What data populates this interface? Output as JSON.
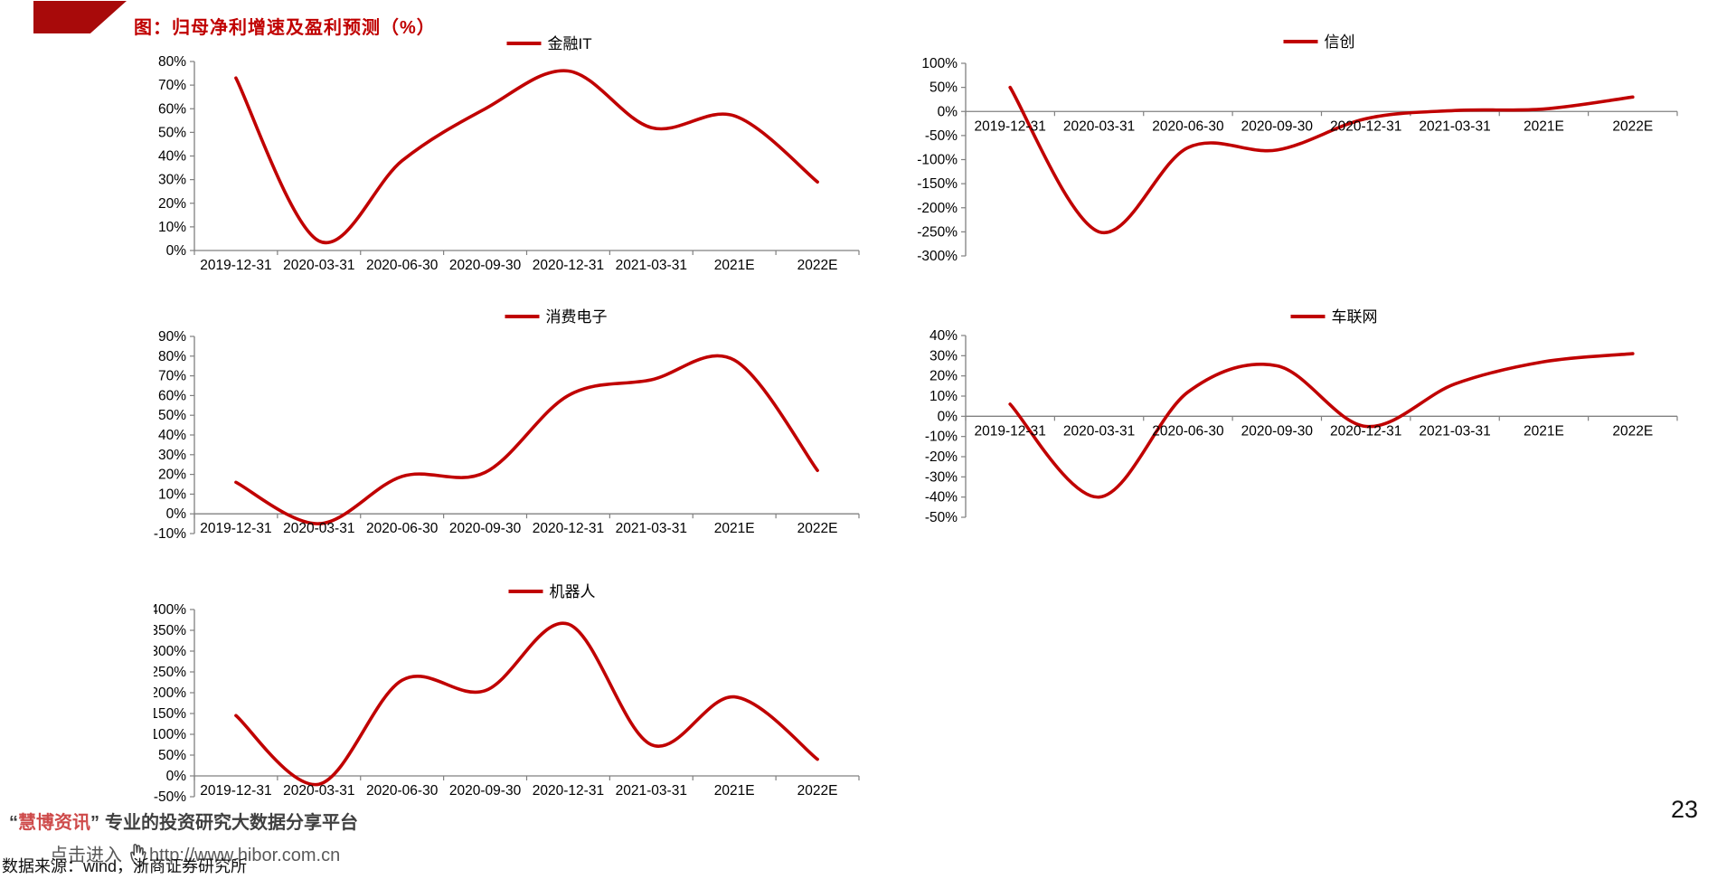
{
  "page": {
    "title": "图：归母净利增速及盈利预测（%）",
    "page_number": "23"
  },
  "footer": {
    "open_quote": "“",
    "brand_name": "慧博资讯",
    "close_quote": "”",
    "tagline": "专业的投资研究大数据分享平台",
    "link_text": "点击进入",
    "link_url": "http://www.hibor.com.cn",
    "data_source": "数据来源：wind，浙商证券研究所"
  },
  "colors": {
    "line_red": "#c00000",
    "title_red": "#c00000",
    "logo_red": "#a80a0a",
    "brand_red": "#ce4a4a",
    "axis_gray": "#808080",
    "label_black": "#000000"
  },
  "chart_data": [
    {
      "type": "line",
      "title": "金融IT",
      "legend_position": "top",
      "grid": false,
      "categories": [
        "2019-12-31",
        "2020-03-31",
        "2020-06-30",
        "2020-09-30",
        "2020-12-31",
        "2021-03-31",
        "2021E",
        "2022E"
      ],
      "values": [
        73,
        4,
        38,
        60,
        76,
        52,
        57,
        29
      ],
      "ylim": [
        0,
        80
      ],
      "ytick_step": 10,
      "ytick_suffix": "%"
    },
    {
      "type": "line",
      "title": "信创",
      "legend_position": "top",
      "grid": false,
      "categories": [
        "2019-12-31",
        "2020-03-31",
        "2020-06-30",
        "2020-09-30",
        "2020-12-31",
        "2021-03-31",
        "2021E",
        "2022E"
      ],
      "values": [
        50,
        -250,
        -75,
        -80,
        -15,
        2,
        5,
        30
      ],
      "ylim": [
        -300,
        100
      ],
      "ytick_step": 50,
      "ytick_suffix": "%"
    },
    {
      "type": "line",
      "title": "消费电子",
      "legend_position": "top",
      "grid": false,
      "categories": [
        "2019-12-31",
        "2020-03-31",
        "2020-06-30",
        "2020-09-30",
        "2020-12-31",
        "2021-03-31",
        "2021E",
        "2022E"
      ],
      "values": [
        16,
        -5,
        19,
        21,
        60,
        68,
        78,
        22
      ],
      "ylim": [
        -10,
        90
      ],
      "ytick_step": 10,
      "ytick_suffix": "%"
    },
    {
      "type": "line",
      "title": "车联网",
      "legend_position": "top",
      "grid": false,
      "categories": [
        "2019-12-31",
        "2020-03-31",
        "2020-06-30",
        "2020-09-30",
        "2020-12-31",
        "2021-03-31",
        "2021E",
        "2022E"
      ],
      "values": [
        6,
        -40,
        12,
        25,
        -5,
        16,
        27,
        31
      ],
      "ylim": [
        -50,
        40
      ],
      "ytick_step": 10,
      "ytick_suffix": "%"
    },
    {
      "type": "line",
      "title": "机器人",
      "legend_position": "top",
      "grid": false,
      "categories": [
        "2019-12-31",
        "2020-03-31",
        "2020-06-30",
        "2020-09-30",
        "2020-12-31",
        "2021-03-31",
        "2021E",
        "2022E"
      ],
      "values": [
        145,
        -20,
        230,
        205,
        365,
        75,
        190,
        40
      ],
      "ylim": [
        -50,
        400
      ],
      "ytick_step": 50,
      "ytick_suffix": "%"
    }
  ]
}
